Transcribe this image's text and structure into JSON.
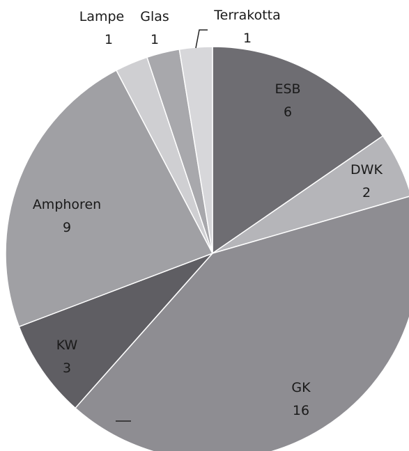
{
  "chart_data": {
    "type": "pie",
    "title": "",
    "start_angle_deg": 0,
    "direction": "clockwise",
    "slices": [
      {
        "label": "ESB",
        "value": 6,
        "color": "#6e6d72"
      },
      {
        "label": "DWK",
        "value": 2,
        "color": "#b5b5b9"
      },
      {
        "label": "GK",
        "value": 16,
        "color": "#8e8d92"
      },
      {
        "label": "KW",
        "value": 3,
        "color": "#5f5e63"
      },
      {
        "label": "Amphoren",
        "value": 9,
        "color": "#a0a0a4"
      },
      {
        "label": "Lampe",
        "value": 1,
        "color": "#cfcfd2"
      },
      {
        "label": "Glas",
        "value": 1,
        "color": "#a8a8ac"
      },
      {
        "label": "Terrakotta",
        "value": 1,
        "color": "#d7d7da"
      }
    ]
  }
}
